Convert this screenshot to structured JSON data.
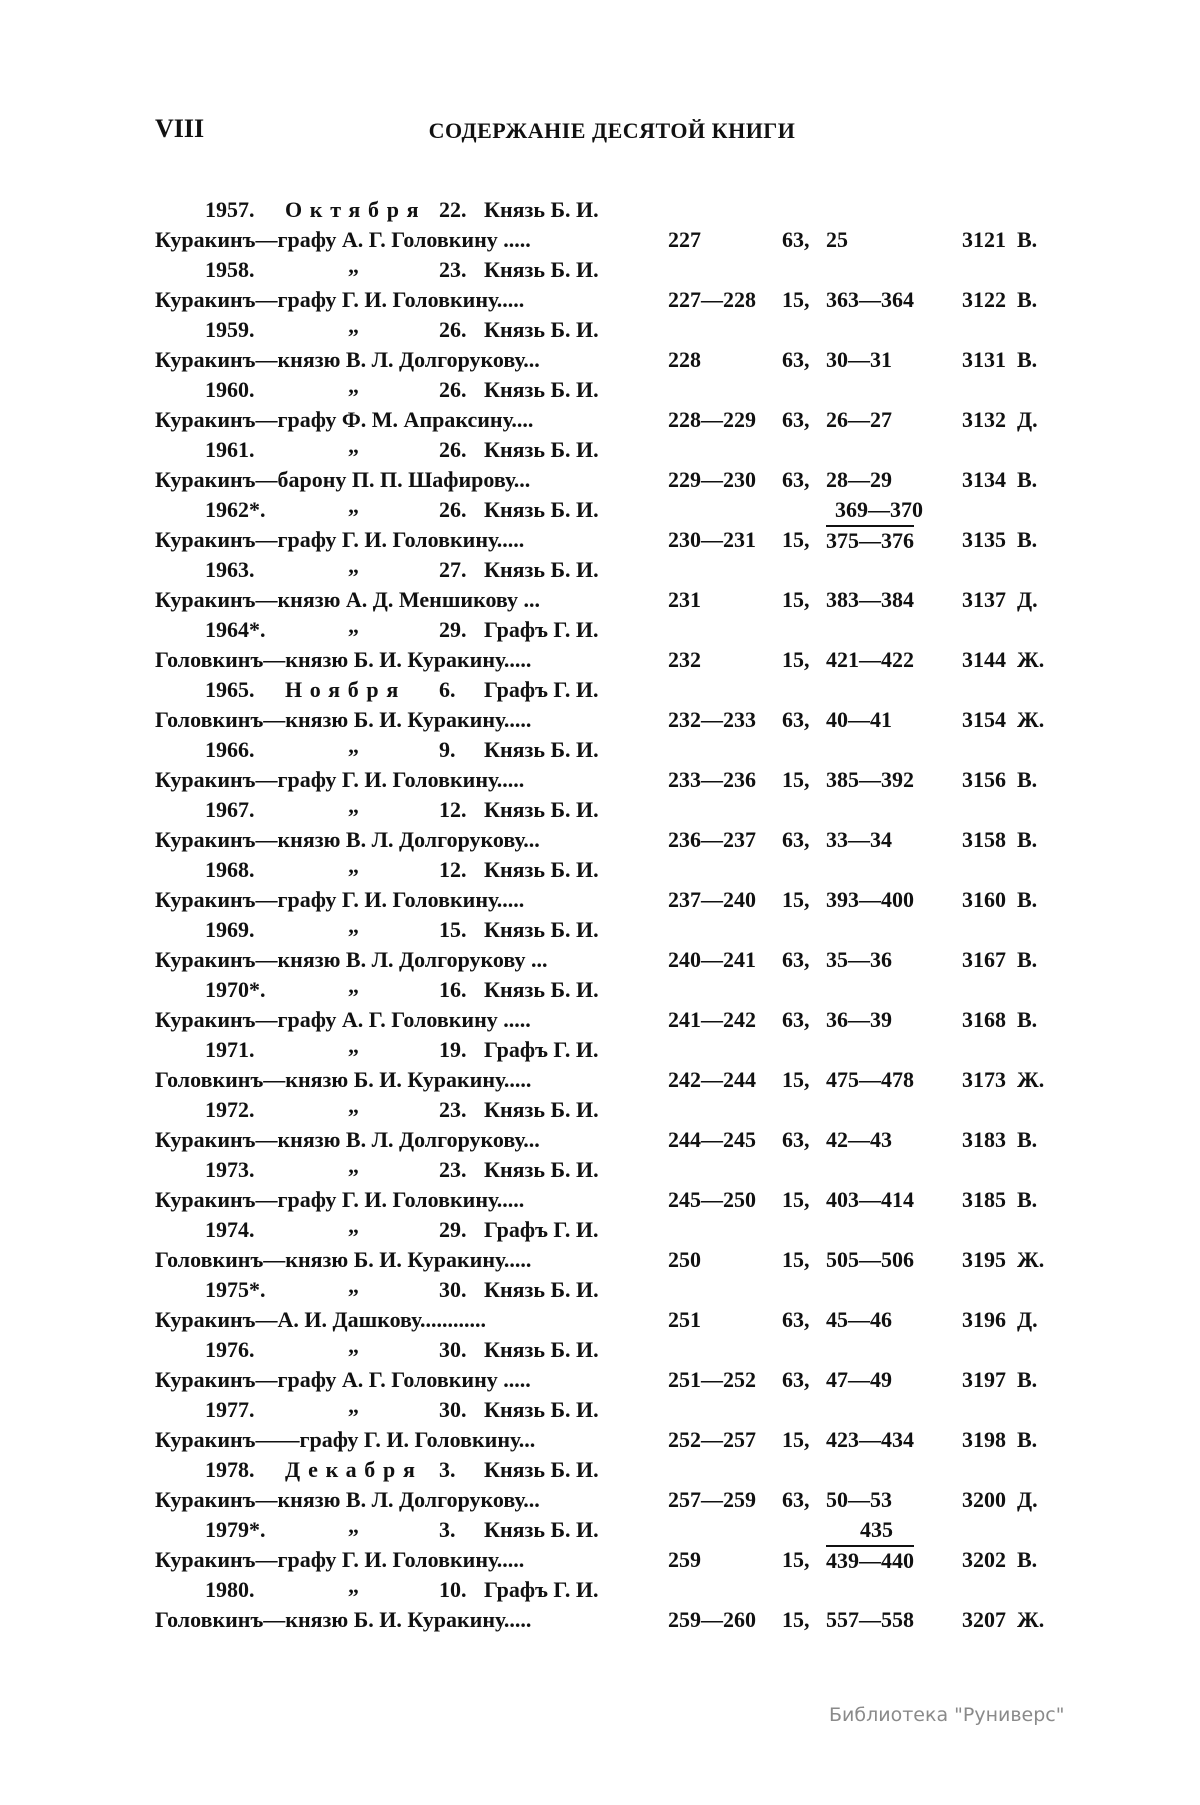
{
  "header": {
    "page_number": "VIII",
    "title": "СОДЕРЖАНІЕ ДЕСЯТОЙ КНИГИ"
  },
  "entries": [
    {
      "no": "1957.",
      "month": "Октября",
      "day": "22.",
      "sender": "Князь Б. И.",
      "text": "Куракинъ—графу А. Г. Головкину .....",
      "pages": "227",
      "vol": "63,",
      "range": "25",
      "doc": "3121",
      "mark": "В."
    },
    {
      "no": "1958.",
      "ditto": "„",
      "day": "23.",
      "sender": "Князь Б. И.",
      "text": "Куракинъ—графу Г. И. Головкину.....",
      "pages": "227—228",
      "vol": "15,",
      "range": "363—364",
      "doc": "3122",
      "mark": "В."
    },
    {
      "no": "1959.",
      "ditto": "„",
      "day": "26.",
      "sender": "Князь Б. И.",
      "text": "Куракинъ—князю В. Л. Долгорукову...",
      "pages": "228",
      "vol": "63,",
      "range": "30—31",
      "doc": "3131",
      "mark": "В."
    },
    {
      "no": "1960.",
      "ditto": "„",
      "day": "26.",
      "sender": "Князь Б. И.",
      "text": "Куракинъ—графу Ф. М. Апраксину....",
      "pages": "228—229",
      "vol": "63,",
      "range": "26—27",
      "doc": "3132",
      "mark": "Д."
    },
    {
      "no": "1961.",
      "ditto": "„",
      "day": "26.",
      "sender": "Князь Б. И.",
      "text": "Куракинъ—барону П. П. Шафирову...",
      "pages": "229—230",
      "vol": "63,",
      "range": "28—29",
      "doc": "3134",
      "mark": "В."
    },
    {
      "no": "1962*.",
      "ditto": "„",
      "day": "26.",
      "sender": "Князь Б. И.",
      "text": "Куракинъ—графу Г. И. Головкину.....",
      "pages": "230—231",
      "vol": "15,",
      "range": "375—376",
      "range_above": "369—370",
      "doc": "3135",
      "mark": "В."
    },
    {
      "no": "1963.",
      "ditto": "„",
      "day": "27.",
      "sender": "Князь Б. И.",
      "text": "Куракинъ—князю А. Д. Меншикову ...",
      "pages": "231",
      "vol": "15,",
      "range": "383—384",
      "doc": "3137",
      "mark": "Д."
    },
    {
      "no": "1964*.",
      "ditto": "„",
      "day": "29.",
      "sender": "Графъ Г. И.",
      "text": "Головкинъ—князю Б. И. Куракину.....",
      "pages": "232",
      "vol": "15,",
      "range": "421—422",
      "doc": "3144",
      "mark": "Ж."
    },
    {
      "no": "1965.",
      "month": "Ноября",
      "day": "6.",
      "sender": "Графъ Г. И.",
      "text": "Головкинъ—князю Б. И. Куракину.....",
      "pages": "232—233",
      "vol": "63,",
      "range": "40—41",
      "doc": "3154",
      "mark": "Ж."
    },
    {
      "no": "1966.",
      "ditto": "„",
      "day": "9.",
      "sender": "Князь Б. И.",
      "text": "Куракинъ—графу Г. И. Головкину.....",
      "pages": "233—236",
      "vol": "15,",
      "range": "385—392",
      "doc": "3156",
      "mark": "В."
    },
    {
      "no": "1967.",
      "ditto": "„",
      "day": "12.",
      "sender": "Князь Б. И.",
      "text": "Куракинъ—князю В. Л. Долгорукову...",
      "pages": "236—237",
      "vol": "63,",
      "range": "33—34",
      "doc": "3158",
      "mark": "В."
    },
    {
      "no": "1968.",
      "ditto": "„",
      "day": "12.",
      "sender": "Князь Б. И.",
      "text": "Куракинъ—графу Г. И. Головкину.....",
      "pages": "237—240",
      "vol": "15,",
      "range": "393—400",
      "doc": "3160",
      "mark": "В."
    },
    {
      "no": "1969.",
      "ditto": "„",
      "day": "15.",
      "sender": "Князь Б. И.",
      "text": "Куракинъ—князю В. Л. Долгорукову ...",
      "pages": "240—241",
      "vol": "63,",
      "range": "35—36",
      "doc": "3167",
      "mark": "В."
    },
    {
      "no": "1970*.",
      "ditto": "„",
      "day": "16.",
      "sender": "Князь Б. И.",
      "text": "Куракинъ—графу А. Г. Головкину .....",
      "pages": "241—242",
      "vol": "63,",
      "range": "36—39",
      "doc": "3168",
      "mark": "В."
    },
    {
      "no": "1971.",
      "ditto": "„",
      "day": "19.",
      "sender": "Графъ Г. И.",
      "text": "Головкинъ—князю Б. И. Куракину.....",
      "pages": "242—244",
      "vol": "15,",
      "range": "475—478",
      "doc": "3173",
      "mark": "Ж."
    },
    {
      "no": "1972.",
      "ditto": "„",
      "day": "23.",
      "sender": "Князь Б. И.",
      "text": "Куракинъ—князю В. Л. Долгорукову...",
      "pages": "244—245",
      "vol": "63,",
      "range": "42—43",
      "doc": "3183",
      "mark": "В."
    },
    {
      "no": "1973.",
      "ditto": "„",
      "day": "23.",
      "sender": "Князь Б. И.",
      "text": "Куракинъ—графу Г. И. Головкину.....",
      "pages": "245—250",
      "vol": "15,",
      "range": "403—414",
      "doc": "3185",
      "mark": "В."
    },
    {
      "no": "1974.",
      "ditto": "„",
      "day": "29.",
      "sender": "Графъ Г. И.",
      "text": "Головкинъ—князю Б. И. Куракину.....",
      "pages": "250",
      "vol": "15,",
      "range": "505—506",
      "doc": "3195",
      "mark": "Ж."
    },
    {
      "no": "1975*.",
      "ditto": "„",
      "day": "30.",
      "sender": "Князь Б. И.",
      "text": "Куракинъ—А. И. Дашкову............",
      "pages": "251",
      "vol": "63,",
      "range": "45—46",
      "doc": "3196",
      "mark": "Д."
    },
    {
      "no": "1976.",
      "ditto": "„",
      "day": "30.",
      "sender": "Князь Б. И.",
      "text": "Куракинъ—графу А. Г. Головкину .....",
      "pages": "251—252",
      "vol": "63,",
      "range": "47—49",
      "doc": "3197",
      "mark": "В."
    },
    {
      "no": "1977.",
      "ditto": "„",
      "day": "30.",
      "sender": "Князь Б. И.",
      "text": "Куракинъ——графу Г. И. Головкину...",
      "pages": "252—257",
      "vol": "15,",
      "range": "423—434",
      "doc": "3198",
      "mark": "В."
    },
    {
      "no": "1978.",
      "month": "Декабря",
      "day": "3.",
      "sender": "Князь Б. И.",
      "text": "Куракинъ—князю В. Л. Долгорукову...",
      "pages": "257—259",
      "vol": "63,",
      "range": "50—53",
      "doc": "3200",
      "mark": "Д."
    },
    {
      "no": "1979*.",
      "ditto": "„",
      "day": "3.",
      "sender": "Князь Б. И.",
      "text": "Куракинъ—графу Г. И. Головкину.....",
      "pages": "259",
      "vol": "15,",
      "range": "439—440",
      "range_above": "435",
      "doc": "3202",
      "mark": "В."
    },
    {
      "no": "1980.",
      "ditto": "„",
      "day": "10.",
      "sender": "Графъ Г. И.",
      "text": "Головкинъ—князю Б. И. Куракину.....",
      "pages": "259—260",
      "vol": "15,",
      "range": "557—558",
      "doc": "3207",
      "mark": "Ж."
    }
  ],
  "watermark": "Библиотека \"Руниверс\""
}
